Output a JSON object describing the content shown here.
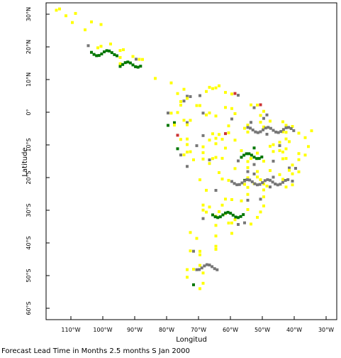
{
  "map": {
    "x_axis_title": "Longitud",
    "y_axis_title": "Latitude",
    "x_ticks": [
      {
        "lon": -110,
        "label": "110°W"
      },
      {
        "lon": -100,
        "label": "100°W"
      },
      {
        "lon": -90,
        "label": "90°W"
      },
      {
        "lon": -80,
        "label": "80°W"
      },
      {
        "lon": -70,
        "label": "70°W"
      },
      {
        "lon": -60,
        "label": "60°W"
      },
      {
        "lon": -50,
        "label": "50°W"
      },
      {
        "lon": -40,
        "label": "40°W"
      },
      {
        "lon": -30,
        "label": "30°W"
      }
    ],
    "y_ticks": [
      {
        "lat": 30,
        "label": "30°N"
      },
      {
        "lat": 20,
        "label": "20°N"
      },
      {
        "lat": 10,
        "label": "10°N"
      },
      {
        "lat": 0,
        "label": "0°"
      },
      {
        "lat": -10,
        "label": "10°S"
      },
      {
        "lat": -20,
        "label": "20°S"
      },
      {
        "lat": -30,
        "label": "30°S"
      },
      {
        "lat": -40,
        "label": "40°S"
      },
      {
        "lat": -50,
        "label": "50°S"
      },
      {
        "lat": -60,
        "label": "60°S"
      }
    ],
    "lon_range": [
      -120,
      -26
    ],
    "lat_range": [
      -65,
      33
    ],
    "colors": {
      "yellow": "#ffff00",
      "gray": "#777777",
      "green": "#007700",
      "red": "#cc3333"
    }
  },
  "caption": "Forecast Lead Time in Months 2.5 months S Jan 2000"
}
